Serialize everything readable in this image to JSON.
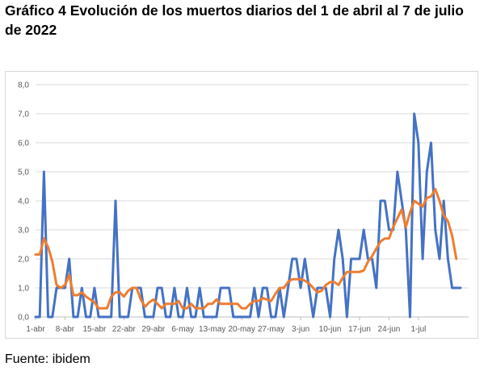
{
  "header": {
    "title": "Gráfico 4 Evolución de los muertos diarios del 1 de abril al 7 de julio de 2022"
  },
  "footer": {
    "source": "Fuente: ibidem"
  },
  "colors": {
    "daily": "#4472c4",
    "average": "#ed7d31",
    "grid": "#d9d9d9",
    "axis": "#bfbfbf"
  },
  "chart_data": {
    "type": "line",
    "title": "",
    "xlabel": "",
    "ylabel": "",
    "ylim": [
      0,
      8
    ],
    "y_ticks": [
      "0,0",
      "1,0",
      "2,0",
      "3,0",
      "4,0",
      "5,0",
      "6,0",
      "7,0",
      "8,0"
    ],
    "x_ticks": [
      "1-abr",
      "8-abr",
      "15-abr",
      "22-abr",
      "29-abr",
      "6-may",
      "13-may",
      "20-may",
      "27-may",
      "3-jun",
      "10-jun",
      "17-jun",
      "24-jun",
      "1-jul"
    ],
    "grid": "horizontal",
    "legend": "none",
    "series": [
      {
        "values": [
          0,
          0,
          5,
          0,
          0,
          1,
          1,
          1,
          2,
          0,
          0,
          1,
          0,
          0,
          1,
          0,
          0,
          0,
          0,
          4,
          0,
          0,
          0,
          1,
          1,
          1,
          0,
          0,
          0,
          1,
          1,
          0,
          0,
          1,
          0,
          0,
          1,
          0,
          0,
          1,
          0,
          0,
          0,
          0,
          1,
          1,
          1,
          0,
          0,
          0,
          0,
          0,
          1,
          0,
          1,
          1,
          0,
          0,
          1,
          0,
          1,
          2,
          2,
          1,
          2,
          1,
          0,
          1,
          1,
          1,
          0,
          2,
          3,
          2,
          0,
          2,
          2,
          2,
          3,
          2,
          2,
          1,
          4,
          4,
          3,
          3,
          5,
          4,
          3,
          0,
          7,
          6,
          2,
          5,
          6,
          3,
          2,
          4,
          2,
          1,
          1,
          1
        ]
      },
      {
        "values": [
          2.15,
          2.15,
          2.7,
          2.4,
          1.9,
          1.1,
          1.0,
          1.1,
          1.45,
          0.75,
          0.75,
          0.85,
          0.7,
          0.6,
          0.5,
          0.3,
          0.3,
          0.3,
          0.7,
          0.85,
          0.85,
          0.7,
          0.9,
          1.0,
          1.0,
          0.6,
          0.35,
          0.5,
          0.6,
          0.45,
          0.3,
          0.45,
          0.45,
          0.45,
          0.55,
          0.3,
          0.3,
          0.45,
          0.3,
          0.3,
          0.3,
          0.45,
          0.45,
          0.6,
          0.45,
          0.45,
          0.45,
          0.45,
          0.45,
          0.3,
          0.3,
          0.45,
          0.55,
          0.55,
          0.65,
          0.6,
          0.55,
          0.8,
          1.0,
          1.0,
          1.2,
          1.3,
          1.3,
          1.3,
          1.25,
          1.15,
          1.0,
          0.85,
          0.9,
          1.1,
          1.2,
          1.2,
          1.1,
          1.35,
          1.55,
          1.55,
          1.55,
          1.55,
          1.6,
          1.9,
          2.1,
          2.35,
          2.6,
          2.7,
          2.7,
          3.1,
          3.4,
          3.7,
          3.1,
          3.6,
          4.0,
          3.9,
          3.8,
          4.1,
          4.15,
          4.4,
          4.0,
          3.5,
          3.3,
          2.8,
          2.0
        ]
      }
    ]
  }
}
